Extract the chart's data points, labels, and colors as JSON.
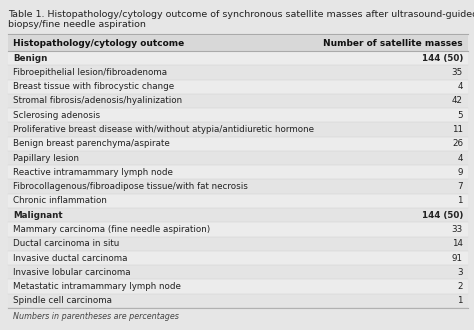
{
  "title_line1": "Table 1. Histopathology/cytology outcome of synchronous satellite masses after ultrasound-guided core",
  "title_line2": "biopsy/fine needle aspiration",
  "col1_header": "Histopathology/cytology outcome",
  "col2_header": "Number of satellite masses",
  "rows": [
    {
      "label": "Benign",
      "value": "144 (50)",
      "bold": true
    },
    {
      "label": "Fibroepithelial lesion/fibroadenoma",
      "value": "35",
      "bold": false
    },
    {
      "label": "Breast tissue with fibrocystic change",
      "value": "4",
      "bold": false
    },
    {
      "label": "Stromal fibrosis/adenosis/hyalinization",
      "value": "42",
      "bold": false
    },
    {
      "label": "Sclerosing adenosis",
      "value": "5",
      "bold": false
    },
    {
      "label": "Proliferative breast disease with/without atypia/antidiuretic hormone",
      "value": "11",
      "bold": false
    },
    {
      "label": "Benign breast parenchyma/aspirate",
      "value": "26",
      "bold": false
    },
    {
      "label": "Papillary lesion",
      "value": "4",
      "bold": false
    },
    {
      "label": "Reactive intramammary lymph node",
      "value": "9",
      "bold": false
    },
    {
      "label": "Fibrocollagenous/fibroadipose tissue/with fat necrosis",
      "value": "7",
      "bold": false
    },
    {
      "label": "Chronic inflammation",
      "value": "1",
      "bold": false
    },
    {
      "label": "Malignant",
      "value": "144 (50)",
      "bold": true
    },
    {
      "label": "Mammary carcinoma (fine needle aspiration)",
      "value": "33",
      "bold": false
    },
    {
      "label": "Ductal carcinoma in situ",
      "value": "14",
      "bold": false
    },
    {
      "label": "Invasive ductal carcinoma",
      "value": "91",
      "bold": false
    },
    {
      "label": "Invasive lobular carcinoma",
      "value": "3",
      "bold": false
    },
    {
      "label": "Metastatic intramammary lymph node",
      "value": "2",
      "bold": false
    },
    {
      "label": "Spindle cell carcinoma",
      "value": "1",
      "bold": false
    }
  ],
  "footnote": "Numbers in parentheses are percentages",
  "bg_color": "#e6e6e6",
  "title_fontsize": 6.8,
  "header_fontsize": 6.5,
  "row_fontsize": 6.3,
  "footnote_fontsize": 5.8
}
